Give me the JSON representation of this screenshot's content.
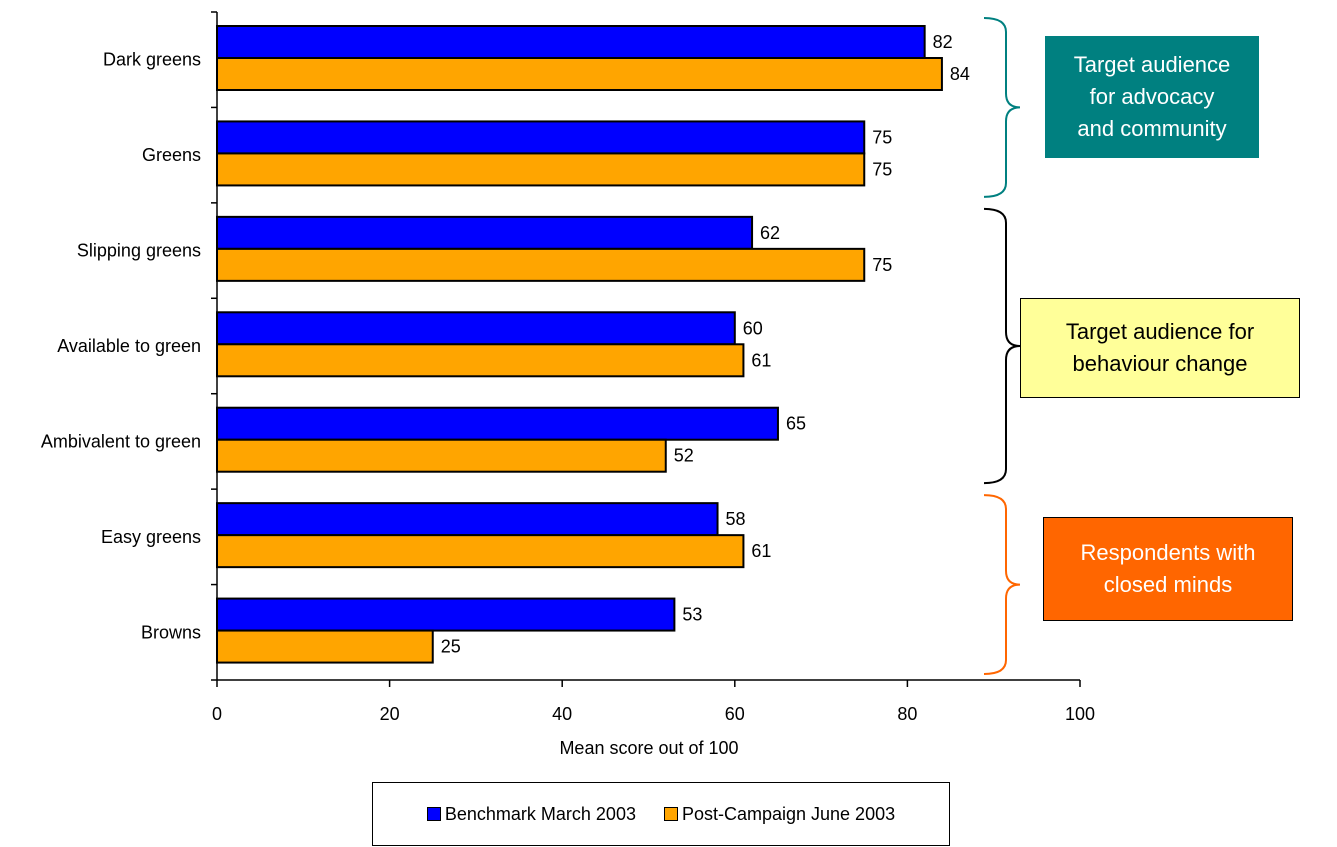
{
  "chart_data": {
    "type": "bar",
    "orientation": "horizontal",
    "categories": [
      "Dark greens",
      "Greens",
      "Slipping greens",
      "Available to green",
      "Ambivalent to green",
      "Easy greens",
      "Browns"
    ],
    "series": [
      {
        "name": "Benchmark March 2003",
        "color": "#0000FF",
        "values": [
          82,
          75,
          62,
          60,
          65,
          58,
          53
        ]
      },
      {
        "name": "Post-Campaign June 2003",
        "color": "#FFA500",
        "values": [
          84,
          75,
          75,
          61,
          52,
          61,
          25
        ]
      }
    ],
    "xlabel": "Mean score out of 100",
    "xlim": [
      0,
      100
    ],
    "xticks": [
      "0",
      "20",
      "40",
      "60",
      "80",
      "100"
    ],
    "grid": false,
    "legend_position": "bottom",
    "annotations": [
      {
        "text": "Target audience\nfor advocacy\nand community",
        "background": "#008080",
        "text_color": "#FFFFFF",
        "bracket_color": "#008080",
        "categories": [
          "Dark greens",
          "Greens"
        ]
      },
      {
        "text": "Target audience for\nbehaviour change",
        "background": "#FFFF99",
        "text_color": "#000000",
        "bracket_color": "#000000",
        "categories": [
          "Slipping greens",
          "Available to green",
          "Ambivalent to green"
        ]
      },
      {
        "text": "Respondents with\nclosed minds",
        "background": "#FF6600",
        "text_color": "#FFFFFF",
        "bracket_color": "#FF6600",
        "categories": [
          "Easy greens",
          "Browns"
        ]
      }
    ]
  }
}
